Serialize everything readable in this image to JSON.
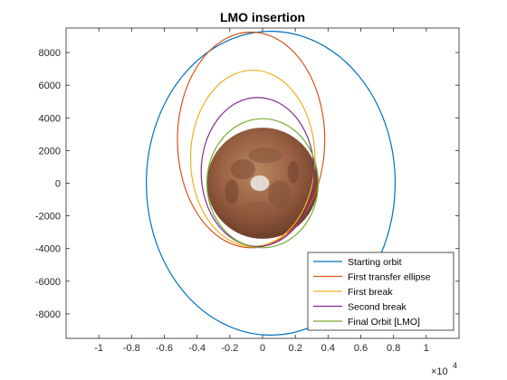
{
  "chart_data": {
    "type": "line",
    "title": "LMO insertion",
    "xlabel": "",
    "ylabel": "",
    "x_exponent_label": "×10",
    "x_exponent": "4",
    "xlim": [
      -1.2,
      1.2
    ],
    "ylim": [
      -9500,
      9500
    ],
    "x_ticks": [
      -1,
      -0.8,
      -0.6,
      -0.4,
      -0.2,
      0,
      0.2,
      0.4,
      0.6,
      0.8,
      1
    ],
    "x_tick_labels": [
      "-1",
      "-0.8",
      "-0.6",
      "-0.4",
      "-0.2",
      "0",
      "0.2",
      "0.4",
      "0.6",
      "0.8",
      "1"
    ],
    "y_ticks": [
      -8000,
      -6000,
      -4000,
      -2000,
      0,
      2000,
      4000,
      6000,
      8000
    ],
    "y_tick_labels": [
      "-8000",
      "-6000",
      "-4000",
      "-2000",
      "0",
      "2000",
      "4000",
      "6000",
      "8000"
    ],
    "grid": false,
    "legend_position": "bottom-right",
    "planet": {
      "name": "Mars",
      "center": [
        0,
        0
      ],
      "radius": 0.34
    },
    "series": [
      {
        "name": "Starting orbit",
        "color": "#0072BD",
        "center": [
          0.05,
          0
        ],
        "semi_axis_x": 0.76,
        "semi_axis_y": 9300
      },
      {
        "name": "First transfer ellipse",
        "color": "#D95319",
        "center": [
          -0.07,
          2650
        ],
        "semi_axis_x": 0.45,
        "semi_axis_y": 6600
      },
      {
        "name": "First break",
        "color": "#EDB120",
        "center": [
          -0.06,
          1520
        ],
        "semi_axis_x": 0.38,
        "semi_axis_y": 5400
      },
      {
        "name": "Second break",
        "color": "#7E2F8E",
        "center": [
          -0.03,
          690
        ],
        "semi_axis_x": 0.345,
        "semi_axis_y": 4560
      },
      {
        "name": "Final Orbit [LMO]",
        "color": "#77AC30",
        "center": [
          0,
          0
        ],
        "semi_axis_x": 0.34,
        "semi_axis_y": 3950
      }
    ]
  }
}
